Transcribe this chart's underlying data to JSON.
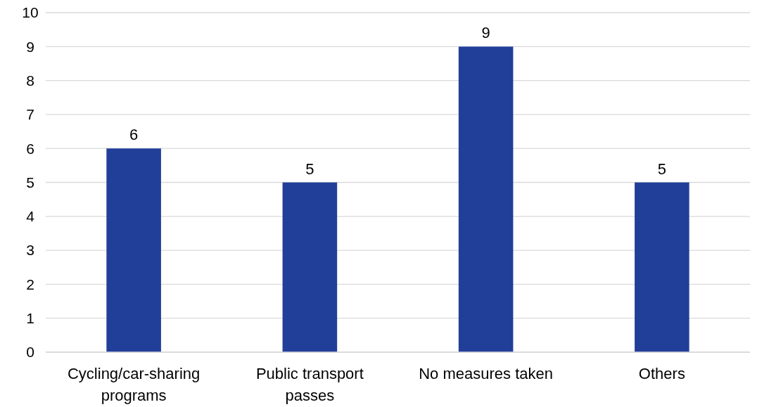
{
  "chart_data": {
    "type": "bar",
    "categories": [
      "Cycling/car-sharing programs",
      "Public transport passes",
      "No measures taken",
      "Others"
    ],
    "values": [
      6,
      5,
      9,
      5
    ],
    "color": "#213f99",
    "ylim": [
      0,
      10
    ],
    "yticks": [
      0,
      1,
      2,
      3,
      4,
      5,
      6,
      7,
      8,
      9,
      10
    ],
    "grid": "y",
    "data_labels": true
  }
}
